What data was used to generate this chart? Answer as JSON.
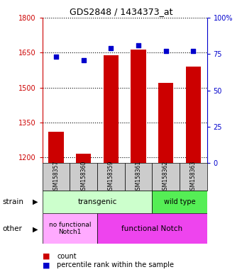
{
  "title": "GDS2848 / 1434373_at",
  "samples": [
    "GSM158357",
    "GSM158360",
    "GSM158359",
    "GSM158361",
    "GSM158362",
    "GSM158363"
  ],
  "counts": [
    1310,
    1215,
    1640,
    1662,
    1520,
    1590
  ],
  "percentiles": [
    73,
    71,
    79,
    81,
    77,
    77
  ],
  "ylim_left": [
    1175,
    1800
  ],
  "ylim_right": [
    0,
    100
  ],
  "yticks_left": [
    1200,
    1350,
    1500,
    1650,
    1800
  ],
  "yticks_right": [
    0,
    25,
    50,
    75,
    100
  ],
  "bar_color": "#cc0000",
  "dot_color": "#0000cc",
  "color_transgenic_light": "#ccffcc",
  "color_wildtype_dark": "#55ee55",
  "color_nofunctional": "#ffaaff",
  "color_functional": "#ee44ee",
  "strain_label_transgenic": "transgenic",
  "strain_label_wildtype": "wild type",
  "other_label_nofunctional": "no functional\nNotch1",
  "other_label_functional": "functional Notch",
  "legend_count": "count",
  "legend_percentile": "percentile rank within the sample"
}
